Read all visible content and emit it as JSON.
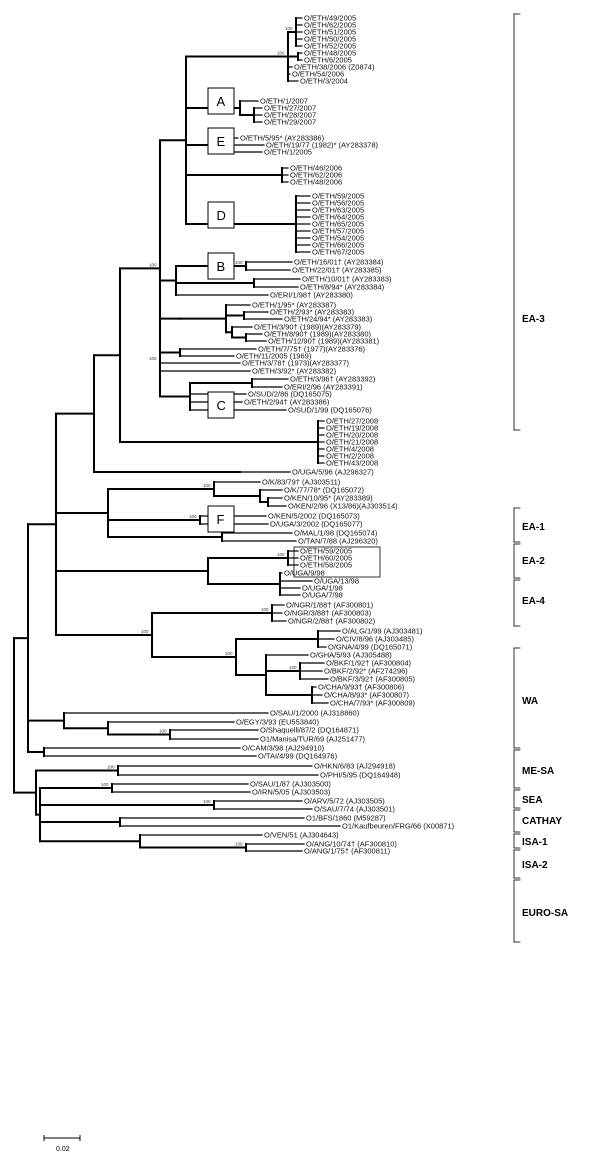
{
  "tree": {
    "taxa": [
      "O/ETH/49/2005",
      "O/ETH/62/2005",
      "O/ETH/51/2005",
      "O/ETH/50/2005",
      "O/ETH/52/2005",
      "O/ETH/48/2005",
      "O/ETH/6/2005",
      "O/ETH/38/2006 (Z0874)",
      "O/ETH/54/2006",
      "O/ETH/3/2004",
      "O/ETH/1/2007",
      "O/ETH/27/2007",
      "O/ETH/28/2007",
      "O/ETH/29/2007",
      "O/ETH/5/95* (AY283386)",
      "O/ETH/19/77 (1982)* (AY283378)",
      "O/ETH/1/2005",
      "O/ETH/46/2006",
      "O/ETH/62/2006",
      "O/ETH/48/2006",
      "O/ETH/59/2005",
      "O/ETH/56/2005",
      "O/ETH/63/2005",
      "O/ETH/64/2005",
      "O/ETH/65/2005",
      "O/ETH/57/2005",
      "O/ETH/54/2005",
      "O/ETH/66/2005",
      "O/ETH/67/2005",
      "O/ETH/16/01† (AY283384)",
      "O/ETH/22/01† (AY283385)",
      "O/ETH/10/01† (AY283383)",
      "O/ETH/8/94* (AY283384)",
      "O/ERI/1/98† (AY283380)",
      "O/ETH/1/95* (AY283387)",
      "O/ETH/2/93* (AY283383)",
      "O/ETH/24/94* (AY283383)",
      "O/ETH/3/90† (1989)(AY283379)",
      "O/ETH/8/90† (1989)(AY283380)",
      "O/ETH/12/90† (1989)(AY283381)",
      "O/ETH/7/75† (1977)(AY283376)",
      "O/ETH/11/2005 (1969)",
      "O/ETH/3/78† (1973)(AY283377)",
      "O/ETH/3/92* (AY283382)",
      "O/ETH/3/96† (AY283392)",
      "O/ERI/2/96 (AY283391)",
      "O/SUD/2/86 (DQ165075)",
      "O/ETH/2/94† (AY283386)",
      "O/SUD/1/99 (DQ165076)",
      "O/ETH/27/2008",
      "O/ETH/19/2008",
      "O/ETH/20/2008",
      "O/ETH/21/2008",
      "O/ETH/4/2008",
      "O/ETH/2/2008",
      "O/ETH/43/2008",
      "O/UGA/5/96 (AJ296327)",
      "O/K/83/79† (AJ303511)",
      "O/K/77/78* (DQ165072)",
      "O/KEN/10/95* (AY283389)",
      "O/KEN/2/96 (X13/86)(AJ303514)",
      "O/KEN/5/2002 (DQ165073)",
      "O/UGA/3/2002 (DQ165077)",
      "O/MAL/1/98 (DQ165074)",
      "O/TAN/7/88 (AJ296320)",
      "O/ETH/59/2005",
      "O/ETH/60/2005",
      "O/ETH/58/2005",
      "O/UGA/9/98",
      "O/UGA/13/98",
      "O/UGA/1/98",
      "O/UGA/7/98",
      "O/NGR/1/88† (AF300801)",
      "O/NGR/3/88† (AF300803)",
      "O/NGR/2/88† (AF300802)",
      "O/ALG/1/99 (AJ303481)",
      "O/CIV/8/96 (AJ303485)",
      "O/GNA/4/99 (DQ165071)",
      "O/GHA/5/93 (AJ305488)",
      "O/BKF/1/92† (AF300804)",
      "O/BKF/2/92* (AF274296)",
      "O/BKF/3/92† (AF300805)",
      "O/CHA/9/93† (AF300806)",
      "O/CHA/8/93* (AF300807)",
      "O/CHA/7/93* (AF300809)",
      "O/SAU/1/2000 (AJ318860)",
      "O/EGY/3/93 (EU553840)",
      "O/Shaquelli/87/2 (DQ164871)",
      "O1/Manisa/TUR/69 (AJ251477)",
      "O/CAM/3/98 (AJ294910)",
      "O/TAI/4/99 (DQ164976)",
      "O/HKN/6/83 (AJ294918)",
      "O/PHI/5/95 (DQ164948)",
      "O/SAU/1/87 (AJ303500)",
      "O/IRN/5/05 (AJ303503)",
      "O/ARV/5/72 (AJ303505)",
      "O/SAU/7/74 (AJ303501)",
      "O1/BFS/1860 (M59287)",
      "O1/Kaufbeuren/FRG/66 (X00871)",
      "O/VEN/51 (AJ304643)",
      "O/ANG/10/74† (AF300810)",
      "O/ANG/1/75† (AF300811)"
    ],
    "clade_labels": [
      "EA-3",
      "EA-1",
      "EA-2",
      "EA-4",
      "WA",
      "ME-SA",
      "SEA",
      "CATHAY",
      "ISA-1",
      "ISA-2",
      "EURO-SA"
    ],
    "group_boxes": [
      "A",
      "E",
      "D",
      "B",
      "C",
      "F"
    ],
    "bootstrap": [
      "100",
      "100",
      "100",
      "100",
      "100",
      "100",
      "100",
      "100",
      "100",
      "100",
      "100",
      "100",
      "100",
      "100",
      "100",
      "100",
      "100",
      "100",
      "100",
      "100",
      "100",
      "100",
      "100",
      "100"
    ],
    "scale_label": "0.02"
  }
}
